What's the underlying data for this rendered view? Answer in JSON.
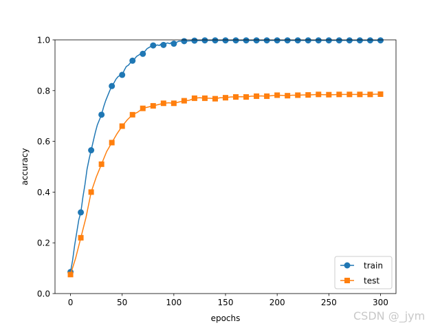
{
  "chart_data": {
    "type": "line",
    "title": "",
    "xlabel": "epochs",
    "ylabel": "accuracy",
    "xlim": [
      -15,
      315
    ],
    "ylim": [
      0.0,
      1.0
    ],
    "xticks": [
      0,
      50,
      100,
      150,
      200,
      250,
      300
    ],
    "yticks": [
      0.0,
      0.2,
      0.4,
      0.6,
      0.8,
      1.0
    ],
    "xtick_labels": [
      "0",
      "50",
      "100",
      "150",
      "200",
      "250",
      "300"
    ],
    "ytick_labels": [
      "0.0",
      "0.2",
      "0.4",
      "0.6",
      "0.8",
      "1.0"
    ],
    "grid": false,
    "legend_position": "lower-right",
    "series": [
      {
        "name": "train",
        "color": "#1f77b4",
        "marker": "circle",
        "x": [
          0,
          2,
          4,
          6,
          8,
          10,
          12,
          14,
          16,
          18,
          20,
          22,
          24,
          26,
          28,
          30,
          32,
          34,
          36,
          38,
          40,
          42,
          44,
          46,
          48,
          50,
          52,
          54,
          56,
          58,
          60,
          62,
          64,
          66,
          68,
          70,
          72,
          74,
          76,
          78,
          80,
          82,
          84,
          86,
          88,
          90,
          92,
          94,
          96,
          98,
          100,
          105,
          110,
          120,
          130,
          140,
          150,
          160,
          170,
          180,
          190,
          200,
          210,
          220,
          230,
          240,
          250,
          260,
          270,
          280,
          290,
          300
        ],
        "y": [
          0.085,
          0.13,
          0.19,
          0.24,
          0.29,
          0.32,
          0.38,
          0.43,
          0.49,
          0.53,
          0.565,
          0.6,
          0.635,
          0.665,
          0.685,
          0.705,
          0.735,
          0.76,
          0.78,
          0.8,
          0.818,
          0.83,
          0.845,
          0.855,
          0.86,
          0.862,
          0.88,
          0.895,
          0.9,
          0.91,
          0.918,
          0.925,
          0.935,
          0.94,
          0.945,
          0.945,
          0.955,
          0.965,
          0.97,
          0.975,
          0.978,
          0.977,
          0.98,
          0.978,
          0.985,
          0.98,
          0.985,
          0.988,
          0.985,
          0.99,
          0.985,
          0.995,
          0.995,
          0.997,
          0.998,
          0.998,
          0.998,
          0.998,
          0.998,
          0.998,
          0.998,
          0.998,
          0.998,
          0.998,
          0.998,
          0.998,
          0.998,
          0.998,
          0.998,
          0.998,
          0.998,
          0.998
        ],
        "marker_x": [
          0,
          10,
          20,
          30,
          40,
          50,
          60,
          70,
          80,
          90,
          100,
          110,
          120,
          130,
          140,
          150,
          160,
          170,
          180,
          190,
          200,
          210,
          220,
          230,
          240,
          250,
          260,
          270,
          280,
          290,
          300
        ],
        "marker_y": [
          0.085,
          0.32,
          0.565,
          0.705,
          0.818,
          0.862,
          0.918,
          0.945,
          0.978,
          0.98,
          0.985,
          0.995,
          0.997,
          0.998,
          0.998,
          0.998,
          0.998,
          0.998,
          0.998,
          0.998,
          0.998,
          0.998,
          0.998,
          0.998,
          0.998,
          0.998,
          0.998,
          0.998,
          0.998,
          0.998,
          0.998
        ]
      },
      {
        "name": "test",
        "color": "#ff7f0e",
        "marker": "square",
        "x": [
          0,
          5,
          10,
          15,
          20,
          25,
          30,
          35,
          40,
          45,
          50,
          55,
          60,
          65,
          70,
          75,
          80,
          85,
          90,
          95,
          100,
          105,
          110,
          115,
          120,
          125,
          130,
          135,
          140,
          145,
          150,
          155,
          160,
          165,
          170,
          175,
          180,
          185,
          190,
          195,
          200,
          205,
          210,
          215,
          220,
          225,
          230,
          235,
          240,
          245,
          250,
          255,
          260,
          265,
          270,
          275,
          280,
          285,
          290,
          295,
          300
        ],
        "y": [
          0.075,
          0.14,
          0.22,
          0.3,
          0.4,
          0.46,
          0.51,
          0.56,
          0.595,
          0.63,
          0.66,
          0.685,
          0.705,
          0.715,
          0.73,
          0.735,
          0.74,
          0.745,
          0.75,
          0.752,
          0.75,
          0.755,
          0.76,
          0.762,
          0.77,
          0.772,
          0.77,
          0.77,
          0.768,
          0.772,
          0.772,
          0.775,
          0.775,
          0.776,
          0.775,
          0.778,
          0.778,
          0.779,
          0.778,
          0.78,
          0.782,
          0.781,
          0.78,
          0.782,
          0.782,
          0.783,
          0.783,
          0.784,
          0.785,
          0.784,
          0.784,
          0.784,
          0.785,
          0.785,
          0.785,
          0.785,
          0.785,
          0.785,
          0.785,
          0.786,
          0.786
        ],
        "marker_x": [
          0,
          10,
          20,
          30,
          40,
          50,
          60,
          70,
          80,
          90,
          100,
          110,
          120,
          130,
          140,
          150,
          160,
          170,
          180,
          190,
          200,
          210,
          220,
          230,
          240,
          250,
          260,
          270,
          280,
          290,
          300
        ],
        "marker_y": [
          0.075,
          0.22,
          0.4,
          0.51,
          0.595,
          0.66,
          0.705,
          0.73,
          0.74,
          0.75,
          0.75,
          0.76,
          0.77,
          0.77,
          0.768,
          0.772,
          0.775,
          0.775,
          0.778,
          0.778,
          0.782,
          0.78,
          0.782,
          0.783,
          0.785,
          0.784,
          0.785,
          0.785,
          0.785,
          0.785,
          0.786
        ]
      }
    ]
  },
  "watermark": "CSDN @_jym"
}
